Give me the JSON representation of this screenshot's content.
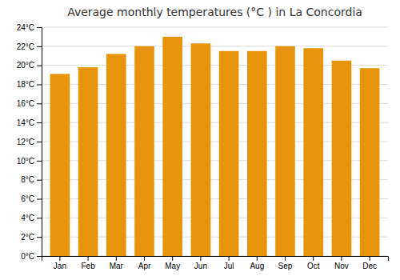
{
  "chart_data": {
    "type": "bar",
    "title": "Average monthly temperatures (°C ) in La Concordia",
    "categories": [
      "Jan",
      "Feb",
      "Mar",
      "Apr",
      "May",
      "Jun",
      "Jul",
      "Aug",
      "Sep",
      "Oct",
      "Nov",
      "Dec"
    ],
    "values": [
      19.1,
      19.8,
      21.2,
      22.0,
      23.0,
      22.3,
      21.5,
      21.5,
      22.0,
      21.8,
      20.5,
      19.7
    ],
    "color": "#E8940A",
    "ylim": [
      0,
      24
    ],
    "yticks": [
      {
        "value": 0,
        "label": "0°C"
      },
      {
        "value": 2,
        "label": "2°C"
      },
      {
        "value": 4,
        "label": "4°C"
      },
      {
        "value": 6,
        "label": "6°C"
      },
      {
        "value": 8,
        "label": "8°C"
      },
      {
        "value": 10,
        "label": "10°C"
      },
      {
        "value": 12,
        "label": "12°C"
      },
      {
        "value": 14,
        "label": "14°C"
      },
      {
        "value": 16,
        "label": "16°C"
      },
      {
        "value": 18,
        "label": "18°C"
      },
      {
        "value": 20,
        "label": "20°C"
      },
      {
        "value": 22,
        "label": "22°C"
      },
      {
        "value": 24,
        "label": "24°C"
      }
    ],
    "grid": true
  }
}
